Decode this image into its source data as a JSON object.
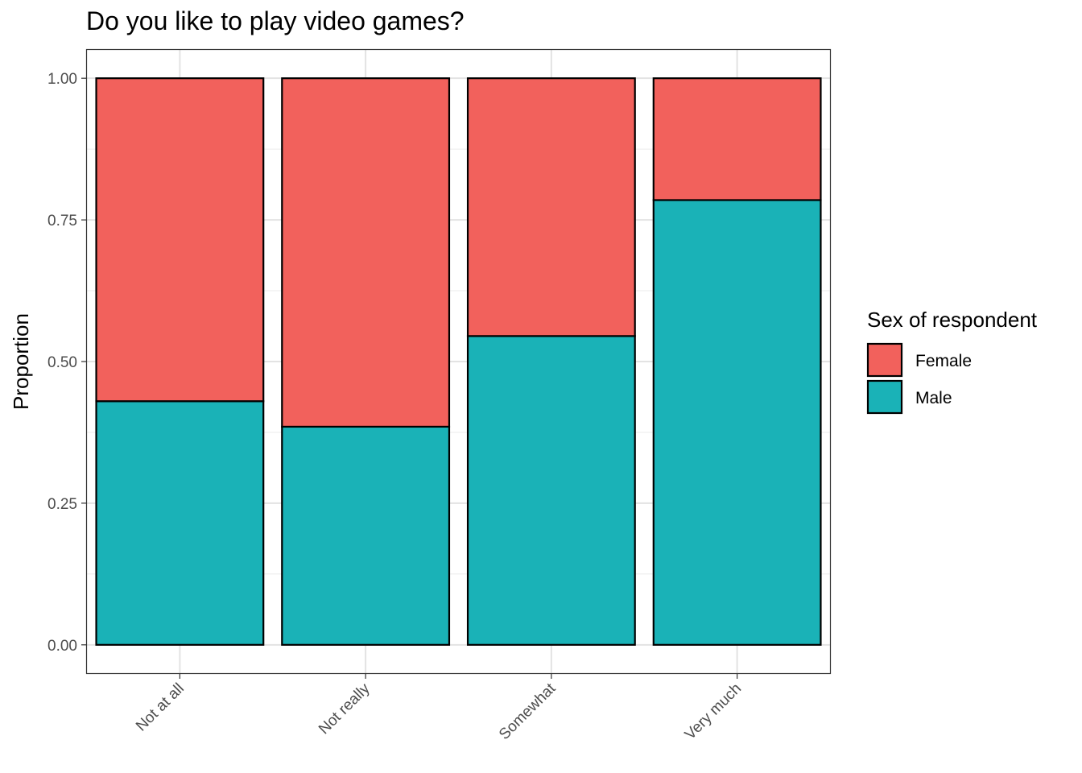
{
  "chart_data": {
    "type": "bar",
    "stacked": true,
    "title": "Do you like to play video games?",
    "xlabel": "",
    "ylabel": "Proportion",
    "categories": [
      "Not at all",
      "Not really",
      "Somewhat",
      "Very much"
    ],
    "series": [
      {
        "name": "Male",
        "color": "#1AB2B7",
        "values": [
          0.43,
          0.385,
          0.545,
          0.785
        ]
      },
      {
        "name": "Female",
        "color": "#F2615C",
        "values": [
          0.57,
          0.615,
          0.455,
          0.215
        ]
      }
    ],
    "ylim": [
      -0.05,
      1.05
    ],
    "yticks": [
      0.0,
      0.25,
      0.5,
      0.75,
      1.0
    ],
    "ytick_labels": [
      "0.00",
      "0.25",
      "0.50",
      "0.75",
      "1.00"
    ],
    "grid": true,
    "legend": {
      "title": "Sex of respondent",
      "position": "right",
      "entries": [
        {
          "label": "Female",
          "color": "#F2615C"
        },
        {
          "label": "Male",
          "color": "#1AB2B7"
        }
      ]
    }
  }
}
